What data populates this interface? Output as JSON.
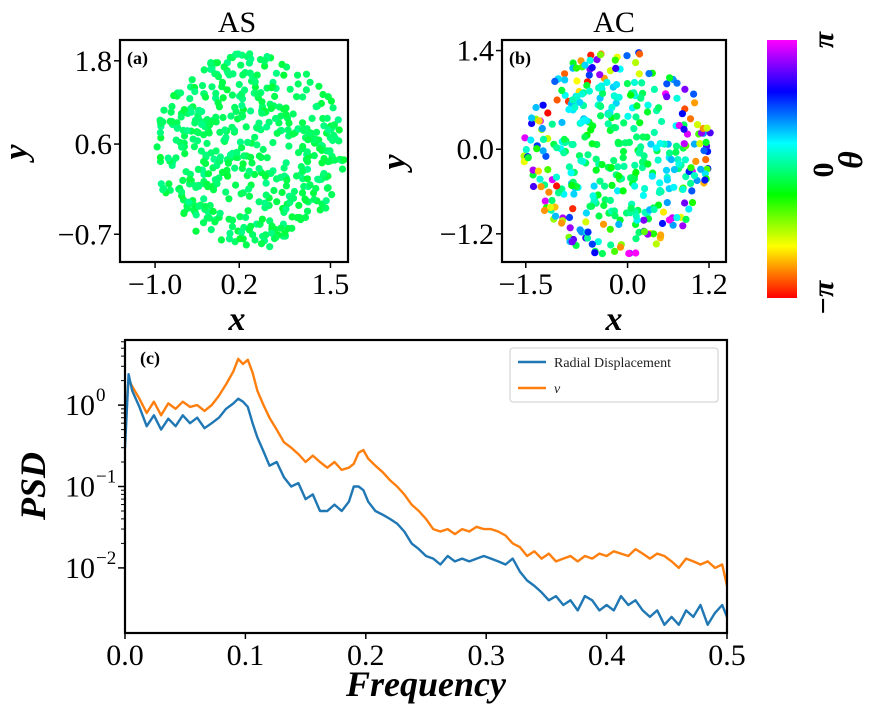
{
  "chart_data": [
    {
      "id": "a",
      "type": "scatter",
      "panel_label": "(a)",
      "title": "AS",
      "xlabel": "x",
      "ylabel": "y",
      "xlim": [
        -1.5,
        1.75
      ],
      "ylim": [
        -1.1,
        2.1
      ],
      "xticks": [
        -1.0,
        0.2,
        1.5
      ],
      "xtick_labels": [
        "−1.0",
        "0.2",
        "1.5"
      ],
      "yticks": [
        -0.7,
        0.6,
        1.8
      ],
      "ytick_labels": [
        "−0.7",
        "0.6",
        "1.8"
      ],
      "cloud": {
        "center": [
          0.35,
          0.5
        ],
        "radius": 1.35,
        "count": 520,
        "phase_range": [
          -0.35,
          0.05
        ]
      }
    },
    {
      "id": "b",
      "type": "scatter",
      "panel_label": "(b)",
      "title": "AC",
      "xlabel": "x",
      "ylabel": "y",
      "xlim": [
        -1.85,
        1.45
      ],
      "ylim": [
        -1.6,
        1.55
      ],
      "xticks": [
        -1.5,
        0.0,
        1.2
      ],
      "xtick_labels": [
        "−1.5",
        "0.0",
        "1.2"
      ],
      "yticks": [
        -1.2,
        0.0,
        1.4
      ],
      "ytick_labels": [
        "−1.2",
        "0.0",
        "1.4"
      ],
      "cloud": {
        "center": [
          -0.15,
          -0.05
        ],
        "radius": 1.4,
        "count": 420,
        "phase": "radial"
      }
    },
    {
      "id": "c",
      "type": "line",
      "panel_label": "(c)",
      "xlabel": "Frequency",
      "ylabel": "PSD",
      "yscale": "log",
      "xlim": [
        0.0,
        0.5
      ],
      "ylim_log10": [
        -2.8,
        0.8
      ],
      "xticks": [
        0.0,
        0.1,
        0.2,
        0.3,
        0.4,
        0.5
      ],
      "xtick_labels": [
        "0.0",
        "0.1",
        "0.2",
        "0.3",
        "0.4",
        "0.5"
      ],
      "yticks": [
        {
          "value": 1,
          "base": "10",
          "exp": "0"
        },
        {
          "value": 0.1,
          "base": "10",
          "exp": "−1"
        },
        {
          "value": 0.01,
          "base": "10",
          "exp": "−2"
        }
      ],
      "legend_position": "top-right",
      "series": [
        {
          "name": "Radial Displacement",
          "color": "#1f77b4",
          "x": [
            0.0,
            0.003,
            0.006,
            0.012,
            0.018,
            0.024,
            0.03,
            0.036,
            0.042,
            0.048,
            0.054,
            0.06,
            0.066,
            0.072,
            0.078,
            0.084,
            0.09,
            0.094,
            0.098,
            0.102,
            0.106,
            0.11,
            0.115,
            0.12,
            0.126,
            0.132,
            0.138,
            0.144,
            0.15,
            0.156,
            0.162,
            0.168,
            0.174,
            0.18,
            0.186,
            0.19,
            0.194,
            0.198,
            0.202,
            0.208,
            0.214,
            0.22,
            0.226,
            0.232,
            0.238,
            0.244,
            0.25,
            0.256,
            0.262,
            0.268,
            0.274,
            0.28,
            0.286,
            0.292,
            0.298,
            0.304,
            0.31,
            0.316,
            0.322,
            0.328,
            0.334,
            0.34,
            0.346,
            0.352,
            0.358,
            0.364,
            0.37,
            0.376,
            0.382,
            0.388,
            0.394,
            0.4,
            0.406,
            0.412,
            0.418,
            0.424,
            0.43,
            0.436,
            0.442,
            0.448,
            0.454,
            0.46,
            0.466,
            0.472,
            0.478,
            0.484,
            0.49,
            0.496,
            0.5
          ],
          "y": [
            0.3,
            2.4,
            1.5,
            0.95,
            0.55,
            0.75,
            0.5,
            0.68,
            0.55,
            0.75,
            0.6,
            0.7,
            0.52,
            0.6,
            0.7,
            0.9,
            1.05,
            1.2,
            1.1,
            0.95,
            0.6,
            0.4,
            0.27,
            0.18,
            0.2,
            0.13,
            0.1,
            0.11,
            0.07,
            0.08,
            0.05,
            0.05,
            0.06,
            0.05,
            0.065,
            0.1,
            0.1,
            0.09,
            0.065,
            0.05,
            0.045,
            0.04,
            0.035,
            0.028,
            0.02,
            0.017,
            0.014,
            0.013,
            0.011,
            0.014,
            0.012,
            0.013,
            0.012,
            0.013,
            0.014,
            0.013,
            0.012,
            0.011,
            0.013,
            0.009,
            0.007,
            0.006,
            0.005,
            0.004,
            0.0045,
            0.0035,
            0.004,
            0.003,
            0.0045,
            0.004,
            0.003,
            0.0035,
            0.003,
            0.0045,
            0.0035,
            0.004,
            0.003,
            0.0025,
            0.003,
            0.002,
            0.0025,
            0.002,
            0.003,
            0.0025,
            0.0035,
            0.002,
            0.0028,
            0.0035,
            0.0025
          ]
        },
        {
          "name": "ν",
          "color": "#ff7f0e",
          "x": [
            0.0,
            0.003,
            0.006,
            0.012,
            0.018,
            0.024,
            0.03,
            0.036,
            0.042,
            0.048,
            0.054,
            0.06,
            0.066,
            0.072,
            0.078,
            0.084,
            0.09,
            0.094,
            0.098,
            0.102,
            0.106,
            0.11,
            0.115,
            0.12,
            0.126,
            0.132,
            0.138,
            0.144,
            0.15,
            0.156,
            0.162,
            0.168,
            0.174,
            0.18,
            0.186,
            0.19,
            0.194,
            0.198,
            0.202,
            0.208,
            0.214,
            0.22,
            0.226,
            0.232,
            0.238,
            0.244,
            0.25,
            0.256,
            0.262,
            0.268,
            0.274,
            0.28,
            0.286,
            0.292,
            0.298,
            0.304,
            0.31,
            0.316,
            0.322,
            0.328,
            0.334,
            0.34,
            0.346,
            0.352,
            0.358,
            0.364,
            0.37,
            0.376,
            0.382,
            0.388,
            0.394,
            0.4,
            0.406,
            0.412,
            0.418,
            0.424,
            0.43,
            0.436,
            0.442,
            0.448,
            0.454,
            0.46,
            0.466,
            0.472,
            0.478,
            0.484,
            0.49,
            0.496,
            0.5
          ],
          "y": [
            0.6,
            2.1,
            1.7,
            1.2,
            0.8,
            1.1,
            0.75,
            1.05,
            0.9,
            1.1,
            0.95,
            1.0,
            0.85,
            1.0,
            1.3,
            1.8,
            2.6,
            3.7,
            3.2,
            3.6,
            2.5,
            1.5,
            1.0,
            0.7,
            0.5,
            0.35,
            0.3,
            0.25,
            0.2,
            0.24,
            0.2,
            0.17,
            0.2,
            0.16,
            0.17,
            0.19,
            0.26,
            0.28,
            0.22,
            0.18,
            0.15,
            0.12,
            0.1,
            0.08,
            0.06,
            0.05,
            0.04,
            0.03,
            0.028,
            0.03,
            0.026,
            0.03,
            0.028,
            0.032,
            0.03,
            0.03,
            0.028,
            0.025,
            0.02,
            0.018,
            0.014,
            0.016,
            0.013,
            0.015,
            0.012,
            0.013,
            0.014,
            0.012,
            0.014,
            0.013,
            0.015,
            0.014,
            0.016,
            0.015,
            0.014,
            0.017,
            0.015,
            0.013,
            0.015,
            0.014,
            0.012,
            0.01,
            0.013,
            0.012,
            0.011,
            0.012,
            0.01,
            0.011,
            0.006
          ]
        }
      ]
    }
  ],
  "colorbar": {
    "label": "θ",
    "tick_labels": [
      "π",
      "0",
      "−π"
    ],
    "stops": [
      "#ff00ff",
      "#0000ff",
      "#00ffff",
      "#00ff00",
      "#ffff00",
      "#ff0000"
    ]
  }
}
